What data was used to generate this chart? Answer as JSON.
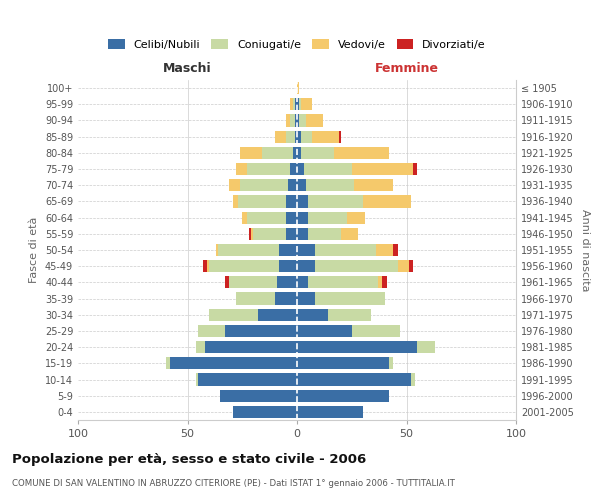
{
  "age_groups": [
    "0-4",
    "5-9",
    "10-14",
    "15-19",
    "20-24",
    "25-29",
    "30-34",
    "35-39",
    "40-44",
    "45-49",
    "50-54",
    "55-59",
    "60-64",
    "65-69",
    "70-74",
    "75-79",
    "80-84",
    "85-89",
    "90-94",
    "95-99",
    "100+"
  ],
  "birth_years": [
    "2001-2005",
    "1996-2000",
    "1991-1995",
    "1986-1990",
    "1981-1985",
    "1976-1980",
    "1971-1975",
    "1966-1970",
    "1961-1965",
    "1956-1960",
    "1951-1955",
    "1946-1950",
    "1941-1945",
    "1936-1940",
    "1931-1935",
    "1926-1930",
    "1921-1925",
    "1916-1920",
    "1911-1915",
    "1906-1910",
    "≤ 1905"
  ],
  "colors": {
    "celibi": "#3a6ea5",
    "coniugati": "#c8daa4",
    "vedovi": "#f5c96b",
    "divorziati": "#cc2222"
  },
  "maschi": {
    "celibi": [
      29,
      35,
      45,
      58,
      42,
      33,
      18,
      10,
      9,
      8,
      8,
      5,
      5,
      5,
      4,
      3,
      2,
      1,
      1,
      1,
      0
    ],
    "coniugati": [
      0,
      0,
      1,
      2,
      4,
      12,
      22,
      18,
      22,
      32,
      28,
      15,
      18,
      22,
      22,
      20,
      14,
      4,
      2,
      1,
      0
    ],
    "vedovi": [
      0,
      0,
      0,
      0,
      0,
      0,
      0,
      0,
      0,
      1,
      1,
      1,
      2,
      2,
      5,
      5,
      10,
      5,
      2,
      1,
      0
    ],
    "divorziati": [
      0,
      0,
      0,
      0,
      0,
      0,
      0,
      0,
      2,
      2,
      0,
      1,
      0,
      0,
      0,
      0,
      0,
      0,
      0,
      0,
      0
    ]
  },
  "femmine": {
    "celibi": [
      30,
      42,
      52,
      42,
      55,
      25,
      14,
      8,
      5,
      8,
      8,
      5,
      5,
      5,
      4,
      3,
      2,
      2,
      1,
      1,
      0
    ],
    "coniugati": [
      0,
      0,
      2,
      2,
      8,
      22,
      20,
      32,
      32,
      38,
      28,
      15,
      18,
      25,
      22,
      22,
      15,
      5,
      3,
      1,
      0
    ],
    "vedovi": [
      0,
      0,
      0,
      0,
      0,
      0,
      0,
      0,
      2,
      5,
      8,
      8,
      8,
      22,
      18,
      28,
      25,
      12,
      8,
      5,
      1
    ],
    "divorziati": [
      0,
      0,
      0,
      0,
      0,
      0,
      0,
      0,
      2,
      2,
      2,
      0,
      0,
      0,
      0,
      2,
      0,
      1,
      0,
      0,
      0
    ]
  },
  "title": "Popolazione per età, sesso e stato civile - 2006",
  "subtitle": "COMUNE DI SAN VALENTINO IN ABRUZZO CITERIORE (PE) - Dati ISTAT 1° gennaio 2006 - TUTTITALIA.IT",
  "xlim": 100,
  "background_color": "#ffffff",
  "grid_color": "#cccccc"
}
